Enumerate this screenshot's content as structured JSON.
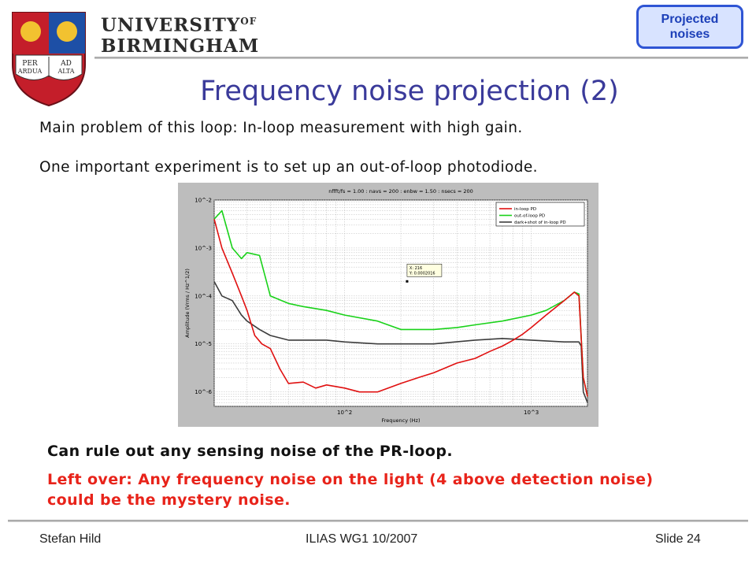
{
  "header": {
    "university_line1": "UNIVERSITY",
    "university_of": "OF",
    "university_line2": "BIRMINGHAM",
    "crest_text": [
      "PER",
      "AD",
      "ARDUA",
      "ALTA"
    ],
    "badge": "Projected\nnoises"
  },
  "title": "Frequency noise projection (2)",
  "body": {
    "line1": "Main problem of this loop: In-loop measurement with high gain.",
    "line2": "One important experiment is to set up an out-of-loop photodiode."
  },
  "chart_data": {
    "type": "line",
    "title": "nffft/fs = 1.00 : navs = 200 : enbw = 1.50 : nsecs = 200",
    "xlabel": "Frequency (Hz)",
    "ylabel": "Amplitude (Vrms / Hz^1/2)",
    "x_scale": "log",
    "y_scale": "log",
    "xlim": [
      20,
      2000
    ],
    "ylim": [
      5e-07,
      0.01
    ],
    "xticks": [
      "10^2",
      "10^3"
    ],
    "yticks": [
      "10^-2",
      "10^-3",
      "10^-4",
      "10^-5",
      "10^-6"
    ],
    "grid": true,
    "legend_position": "top-right",
    "colors": {
      "in_loop": "#e01010",
      "out_of_loop": "#19d219",
      "dark": "#3c3c3c"
    },
    "series": [
      {
        "name": "in-loop PD",
        "x": [
          20,
          22,
          25,
          28,
          30,
          33,
          36,
          40,
          45,
          50,
          60,
          70,
          80,
          100,
          120,
          150,
          200,
          250,
          300,
          400,
          500,
          600,
          700,
          800,
          900,
          1000,
          1200,
          1500,
          1700,
          1800,
          1900,
          2000
        ],
        "y": [
          0.004,
          0.001,
          0.0003,
          0.0001,
          5e-05,
          1.5e-05,
          1e-05,
          8e-06,
          3e-06,
          1.5e-06,
          1.6e-06,
          1.2e-06,
          1.4e-06,
          1.2e-06,
          1e-06,
          1e-06,
          1.5e-06,
          2e-06,
          2.5e-06,
          4e-06,
          5e-06,
          7e-06,
          9e-06,
          1.2e-05,
          1.6e-05,
          2.2e-05,
          4e-05,
          8e-05,
          0.00012,
          0.0001,
          2e-06,
          8e-07
        ]
      },
      {
        "name": "out-of-loop PD",
        "x": [
          20,
          22,
          25,
          28,
          30,
          35,
          40,
          50,
          60,
          80,
          100,
          150,
          200,
          300,
          400,
          500,
          700,
          1000,
          1200,
          1500,
          1700,
          1800,
          1900,
          2000
        ],
        "y": [
          0.004,
          0.006,
          0.001,
          0.0006,
          0.0008,
          0.0007,
          0.0001,
          7e-05,
          6e-05,
          5e-05,
          4e-05,
          3e-05,
          2e-05,
          2e-05,
          2.2e-05,
          2.5e-05,
          3e-05,
          4e-05,
          5e-05,
          8e-05,
          0.00012,
          0.00011,
          2e-06,
          8e-07
        ]
      },
      {
        "name": "dark+shot of in-loop PD",
        "x": [
          20,
          22,
          25,
          28,
          30,
          35,
          40,
          50,
          60,
          80,
          100,
          150,
          200,
          300,
          500,
          700,
          1000,
          1500,
          1800,
          1850,
          1900,
          2000
        ],
        "y": [
          0.0002,
          0.0001,
          8e-05,
          4e-05,
          3e-05,
          2e-05,
          1.5e-05,
          1.2e-05,
          1.2e-05,
          1.2e-05,
          1.1e-05,
          1e-05,
          1e-05,
          1e-05,
          1.2e-05,
          1.3e-05,
          1.2e-05,
          1.1e-05,
          1.1e-05,
          9e-06,
          1e-06,
          6e-07
        ]
      }
    ],
    "annotation": {
      "x_text": "X: 216",
      "y_text": "Y: 0.0002016",
      "x": 216,
      "y": 0.0002016
    }
  },
  "bullets": {
    "b1": "Can rule out any sensing noise of the PR-loop.",
    "b2": "Left over: Any frequency noise on the light (4 above detection noise) could be the mystery noise."
  },
  "footer": {
    "author": "Stefan Hild",
    "meeting": "ILIAS WG1 10/2007",
    "slide": "Slide 24"
  }
}
